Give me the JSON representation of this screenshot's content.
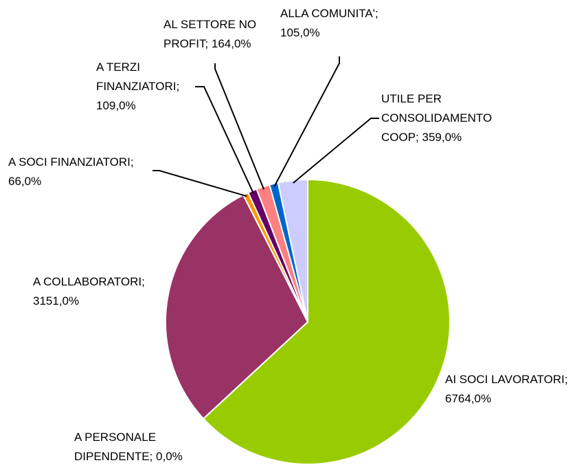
{
  "chart_data": {
    "type": "pie",
    "values": [
      6764,
      0,
      3151,
      66,
      109,
      164,
      105,
      359
    ],
    "value_labels": [
      "AI SOCI LAVORATORI; 6764,0%",
      "A PERSONALE DIPENDENTE; 0,0%",
      "A COLLABORATORI; 3151,0%",
      "A SOCI FINANZIATORI; 66,0%",
      "A TERZI FINANZIATORI; 109,0%",
      "AL SETTORE NO PROFIT; 164,0%",
      "ALLA COMUNITA'; 105,0%",
      "UTILE PER CONSOLIDAMENTO COOP; 359,0%"
    ],
    "colors": [
      "#99cc00",
      "#3366ff",
      "#993366",
      "#ff9900",
      "#660066",
      "#ff8080",
      "#0066cc",
      "#ccccff"
    ]
  }
}
